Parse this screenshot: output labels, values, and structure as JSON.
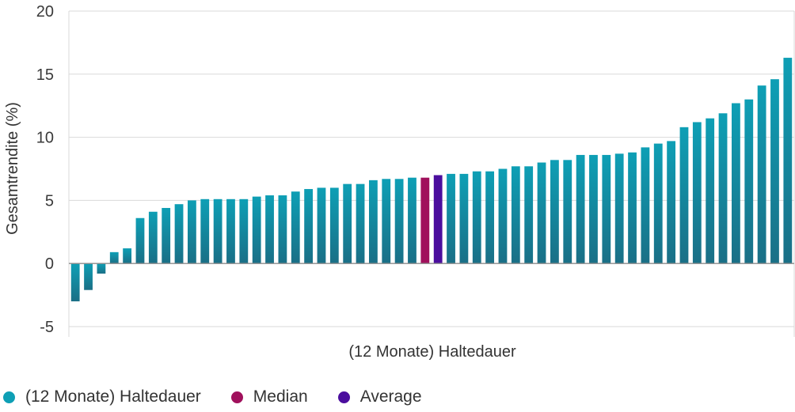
{
  "colors": {
    "series": "#0e9fb5",
    "series_dark": "#1a6f86",
    "median": "#a0105c",
    "average": "#4b0e9e",
    "grid": "#d9d9d9",
    "zero_line": "#8c8c8c"
  },
  "chart_data": {
    "type": "bar",
    "title": "",
    "xlabel": "(12 Monate) Haltedauer",
    "ylabel": "Gesamtrendite (%)",
    "ylim": [
      -5,
      20
    ],
    "yticks": [
      -5,
      0,
      5,
      10,
      15,
      20
    ],
    "ytick_labels": [
      "-5",
      "0",
      "5",
      "10",
      "15",
      "20"
    ],
    "grid": true,
    "legend_position": "bottom-left",
    "values": [
      -3.0,
      -2.1,
      -0.8,
      0.9,
      1.2,
      3.6,
      4.1,
      4.4,
      4.7,
      5.0,
      5.1,
      5.1,
      5.1,
      5.1,
      5.3,
      5.4,
      5.4,
      5.7,
      5.9,
      6.0,
      6.0,
      6.3,
      6.3,
      6.6,
      6.7,
      6.7,
      6.8,
      6.8,
      7.0,
      7.1,
      7.1,
      7.3,
      7.3,
      7.5,
      7.7,
      7.7,
      8.0,
      8.2,
      8.2,
      8.6,
      8.6,
      8.6,
      8.7,
      8.8,
      9.2,
      9.5,
      9.7,
      10.8,
      11.2,
      11.5,
      11.9,
      12.7,
      13.0,
      14.1,
      14.6,
      16.3
    ],
    "median_index": 27,
    "average_index": 28,
    "legend": [
      {
        "label": "(12 Monate) Haltedauer",
        "color": "#0e9fb5"
      },
      {
        "label": "Median",
        "color": "#a0105c"
      },
      {
        "label": "Average",
        "color": "#4b0e9e"
      }
    ]
  }
}
